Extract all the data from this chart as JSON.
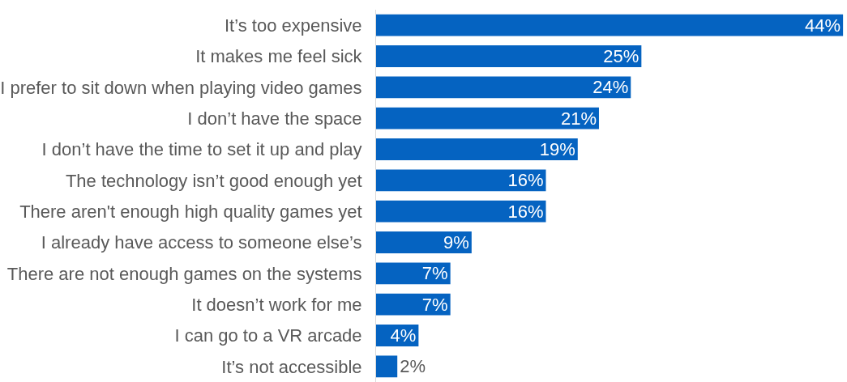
{
  "chart_data": {
    "type": "bar",
    "orientation": "horizontal",
    "categories": [
      "It’s too expensive",
      "It makes me feel sick",
      "I prefer to sit down when playing video games",
      "I don’t have the space",
      "I don’t have the time to set it up and play",
      "The technology isn’t good enough yet",
      "There aren't enough high quality games yet",
      "I already have access to someone else’s",
      "There are not enough games on the systems",
      "It doesn’t work for me",
      "I can go to a VR arcade",
      "It’s not accessible"
    ],
    "values": [
      44,
      25,
      24,
      21,
      19,
      16,
      16,
      9,
      7,
      7,
      4,
      2
    ],
    "value_labels": [
      "44%",
      "25%",
      "24%",
      "21%",
      "19%",
      "16%",
      "16%",
      "9%",
      "7%",
      "7%",
      "4%",
      "2%"
    ],
    "color": "#0563c1",
    "grid": false,
    "legend": false
  }
}
